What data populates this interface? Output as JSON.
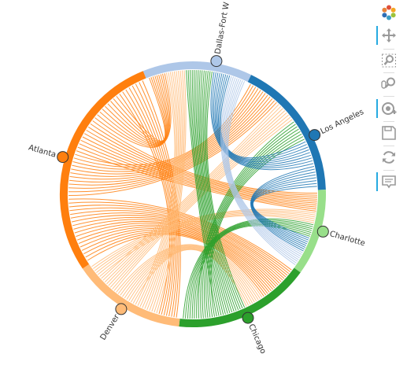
{
  "chart_data": {
    "type": "chord",
    "nodes": [
      {
        "name": "Dallas-Fort W",
        "color": "#aec7e8"
      },
      {
        "name": "Los Angeles",
        "color": "#1f77b4"
      },
      {
        "name": "Charlotte",
        "color": "#98df8a"
      },
      {
        "name": "Chicago",
        "color": "#2ca02c"
      },
      {
        "name": "Denver",
        "color": "#ffbb78"
      },
      {
        "name": "Atlanta",
        "color": "#ff7f0e"
      }
    ]
  },
  "toolbar": {
    "tools": [
      {
        "name": "bokeh-logo-icon"
      },
      {
        "name": "pan-tool-icon",
        "active": true
      },
      {
        "name": "box-zoom-tool-icon"
      },
      {
        "name": "wheel-zoom-tool-icon"
      },
      {
        "name": "tap-tool-icon",
        "active": true
      },
      {
        "name": "save-tool-icon"
      },
      {
        "name": "reset-tool-icon"
      },
      {
        "name": "hover-tool-icon",
        "active": true
      }
    ]
  }
}
